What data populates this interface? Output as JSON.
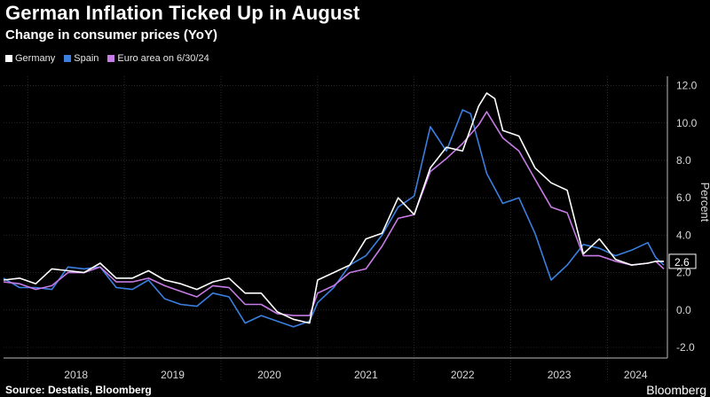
{
  "header": {
    "title": "German Inflation Ticked Up in August",
    "subtitle": "Change in consumer prices (YoY)"
  },
  "legend": {
    "as_of": "on 6/30/24"
  },
  "footer": {
    "source": "Source: Destatis, Bloomberg",
    "brand": "Bloomberg"
  },
  "colors": {
    "background": "#000000",
    "germany": "#ffffff",
    "spain": "#3b7fe0",
    "euro_area": "#c77be6",
    "grid": "#444444",
    "axis_text": "#d8d8d8"
  },
  "chart_data": {
    "type": "line",
    "ylabel": "Percent",
    "ylim": [
      -2,
      12.5
    ],
    "yticks": [
      12.0,
      10.0,
      8.0,
      6.0,
      4.0,
      2.0,
      0.0,
      -2.0
    ],
    "ytick_labels": [
      "12.0",
      "10.0",
      "8.0",
      "6.0",
      "4.0",
      "2.0",
      "0.0",
      "-2.0"
    ],
    "xlim": [
      "2017-10",
      "2024-08"
    ],
    "xtick_labels": [
      "2018",
      "2019",
      "2020",
      "2021",
      "2022",
      "2023",
      "2024"
    ],
    "grid": true,
    "legend_position": "top-left",
    "last_value_label": "2.6",
    "series": [
      {
        "name": "Germany",
        "color": "#ffffff",
        "points": [
          [
            "2017-10",
            1.6
          ],
          [
            "2017-12",
            1.7
          ],
          [
            "2018-02",
            1.4
          ],
          [
            "2018-04",
            2.2
          ],
          [
            "2018-06",
            2.1
          ],
          [
            "2018-08",
            2.0
          ],
          [
            "2018-10",
            2.5
          ],
          [
            "2018-12",
            1.7
          ],
          [
            "2019-02",
            1.7
          ],
          [
            "2019-04",
            2.1
          ],
          [
            "2019-06",
            1.6
          ],
          [
            "2019-08",
            1.4
          ],
          [
            "2019-10",
            1.1
          ],
          [
            "2019-12",
            1.5
          ],
          [
            "2020-02",
            1.7
          ],
          [
            "2020-04",
            0.9
          ],
          [
            "2020-06",
            0.9
          ],
          [
            "2020-08",
            -0.1
          ],
          [
            "2020-10",
            -0.5
          ],
          [
            "2020-12",
            -0.7
          ],
          [
            "2021-01",
            1.6
          ],
          [
            "2021-03",
            2.0
          ],
          [
            "2021-05",
            2.4
          ],
          [
            "2021-07",
            3.8
          ],
          [
            "2021-09",
            4.1
          ],
          [
            "2021-11",
            6.0
          ],
          [
            "2022-01",
            5.1
          ],
          [
            "2022-03",
            7.6
          ],
          [
            "2022-05",
            8.7
          ],
          [
            "2022-07",
            8.5
          ],
          [
            "2022-09",
            10.9
          ],
          [
            "2022-10",
            11.6
          ],
          [
            "2022-11",
            11.3
          ],
          [
            "2022-12",
            9.6
          ],
          [
            "2023-02",
            9.3
          ],
          [
            "2023-04",
            7.6
          ],
          [
            "2023-06",
            6.8
          ],
          [
            "2023-08",
            6.4
          ],
          [
            "2023-10",
            3.0
          ],
          [
            "2023-12",
            3.8
          ],
          [
            "2024-02",
            2.7
          ],
          [
            "2024-04",
            2.4
          ],
          [
            "2024-06",
            2.5
          ],
          [
            "2024-07",
            2.6
          ],
          [
            "2024-08",
            2.6
          ]
        ]
      },
      {
        "name": "Spain",
        "color": "#3b7fe0",
        "points": [
          [
            "2017-10",
            1.7
          ],
          [
            "2017-12",
            1.2
          ],
          [
            "2018-02",
            1.2
          ],
          [
            "2018-04",
            1.1
          ],
          [
            "2018-06",
            2.3
          ],
          [
            "2018-08",
            2.2
          ],
          [
            "2018-10",
            2.3
          ],
          [
            "2018-12",
            1.2
          ],
          [
            "2019-02",
            1.1
          ],
          [
            "2019-04",
            1.6
          ],
          [
            "2019-06",
            0.6
          ],
          [
            "2019-08",
            0.3
          ],
          [
            "2019-10",
            0.2
          ],
          [
            "2019-12",
            0.9
          ],
          [
            "2020-02",
            0.7
          ],
          [
            "2020-04",
            -0.7
          ],
          [
            "2020-06",
            -0.3
          ],
          [
            "2020-08",
            -0.6
          ],
          [
            "2020-10",
            -0.9
          ],
          [
            "2020-12",
            -0.6
          ],
          [
            "2021-01",
            0.4
          ],
          [
            "2021-03",
            1.2
          ],
          [
            "2021-05",
            2.4
          ],
          [
            "2021-07",
            2.9
          ],
          [
            "2021-09",
            4.0
          ],
          [
            "2021-11",
            5.5
          ],
          [
            "2022-01",
            6.1
          ],
          [
            "2022-03",
            9.8
          ],
          [
            "2022-05",
            8.5
          ],
          [
            "2022-07",
            10.7
          ],
          [
            "2022-08",
            10.5
          ],
          [
            "2022-10",
            7.3
          ],
          [
            "2022-12",
            5.7
          ],
          [
            "2023-02",
            6.0
          ],
          [
            "2023-04",
            4.1
          ],
          [
            "2023-06",
            1.6
          ],
          [
            "2023-08",
            2.4
          ],
          [
            "2023-10",
            3.5
          ],
          [
            "2023-12",
            3.3
          ],
          [
            "2024-02",
            2.9
          ],
          [
            "2024-04",
            3.2
          ],
          [
            "2024-06",
            3.6
          ],
          [
            "2024-07",
            2.8
          ],
          [
            "2024-08",
            2.4
          ]
        ]
      },
      {
        "name": "Euro area",
        "color": "#c77be6",
        "points": [
          [
            "2017-10",
            1.5
          ],
          [
            "2017-12",
            1.4
          ],
          [
            "2018-02",
            1.1
          ],
          [
            "2018-04",
            1.3
          ],
          [
            "2018-06",
            2.0
          ],
          [
            "2018-08",
            2.0
          ],
          [
            "2018-10",
            2.3
          ],
          [
            "2018-12",
            1.5
          ],
          [
            "2019-02",
            1.5
          ],
          [
            "2019-04",
            1.7
          ],
          [
            "2019-06",
            1.3
          ],
          [
            "2019-08",
            1.0
          ],
          [
            "2019-10",
            0.7
          ],
          [
            "2019-12",
            1.3
          ],
          [
            "2020-02",
            1.2
          ],
          [
            "2020-04",
            0.3
          ],
          [
            "2020-06",
            0.3
          ],
          [
            "2020-08",
            -0.2
          ],
          [
            "2020-10",
            -0.3
          ],
          [
            "2020-12",
            -0.3
          ],
          [
            "2021-01",
            0.9
          ],
          [
            "2021-03",
            1.3
          ],
          [
            "2021-05",
            2.0
          ],
          [
            "2021-07",
            2.2
          ],
          [
            "2021-09",
            3.4
          ],
          [
            "2021-11",
            4.9
          ],
          [
            "2022-01",
            5.1
          ],
          [
            "2022-03",
            7.4
          ],
          [
            "2022-05",
            8.1
          ],
          [
            "2022-07",
            8.9
          ],
          [
            "2022-09",
            9.9
          ],
          [
            "2022-10",
            10.6
          ],
          [
            "2022-12",
            9.2
          ],
          [
            "2023-02",
            8.5
          ],
          [
            "2023-04",
            7.0
          ],
          [
            "2023-06",
            5.5
          ],
          [
            "2023-08",
            5.2
          ],
          [
            "2023-10",
            2.9
          ],
          [
            "2023-12",
            2.9
          ],
          [
            "2024-02",
            2.6
          ],
          [
            "2024-04",
            2.4
          ],
          [
            "2024-06",
            2.5
          ],
          [
            "2024-07",
            2.6
          ],
          [
            "2024-08",
            2.2
          ]
        ]
      }
    ]
  }
}
